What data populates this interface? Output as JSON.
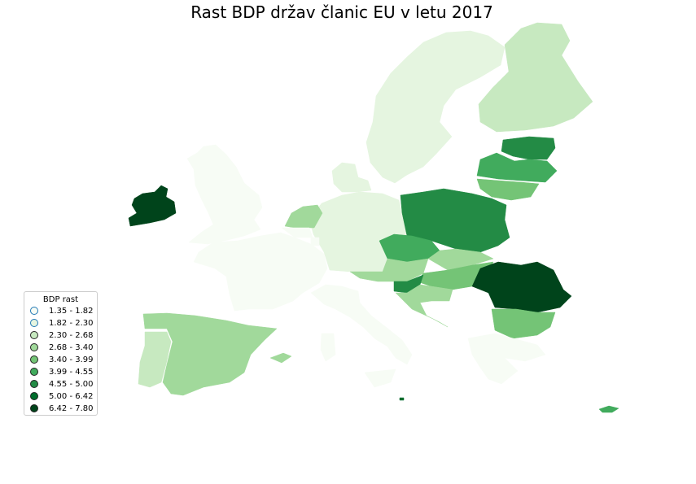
{
  "title": "Rast BDP držav članic EU v letu 2017",
  "legend": {
    "title": "BDP rast",
    "classes": [
      {
        "label": "1.35 - 1.82",
        "color": "#f7fcf5",
        "border": "#1f77b4"
      },
      {
        "label": "1.82 - 2.30",
        "color": "#e5f5e0",
        "border": "#1f77b4"
      },
      {
        "label": "2.30 - 2.68",
        "color": "#c7e9c0",
        "border": "#1f77b4"
      },
      {
        "label": "2.68 - 3.40",
        "color": "#a1d99b",
        "border": "#1f77b4"
      },
      {
        "label": "3.40 - 3.99",
        "color": "#74c476",
        "border": "#1f77b4"
      },
      {
        "label": "3.99 - 4.55",
        "color": "#41ab5d",
        "border": "#1f77b4"
      },
      {
        "label": "4.55 - 5.00",
        "color": "#238b45",
        "border": "#1f77b4"
      },
      {
        "label": "5.00 - 6.42",
        "color": "#006d2c",
        "border": "#1f77b4"
      },
      {
        "label": "6.42 - 7.80",
        "color": "#00441b",
        "border": "#1f77b4"
      }
    ]
  },
  "regions": [
    {
      "name": "united-kingdom",
      "cls": 0
    },
    {
      "name": "ireland",
      "cls": 8
    },
    {
      "name": "france",
      "cls": 0
    },
    {
      "name": "spain",
      "cls": 3
    },
    {
      "name": "portugal",
      "cls": 2
    },
    {
      "name": "italy",
      "cls": 0
    },
    {
      "name": "sardinia",
      "cls": 0
    },
    {
      "name": "sicily",
      "cls": 0
    },
    {
      "name": "germany",
      "cls": 1
    },
    {
      "name": "netherlands",
      "cls": 3
    },
    {
      "name": "belgium",
      "cls": 0
    },
    {
      "name": "luxembourg",
      "cls": 0
    },
    {
      "name": "denmark",
      "cls": 1
    },
    {
      "name": "sweden",
      "cls": 1
    },
    {
      "name": "finland",
      "cls": 2
    },
    {
      "name": "estonia",
      "cls": 6
    },
    {
      "name": "latvia",
      "cls": 5
    },
    {
      "name": "lithuania",
      "cls": 4
    },
    {
      "name": "poland",
      "cls": 6
    },
    {
      "name": "czechia",
      "cls": 5
    },
    {
      "name": "slovakia",
      "cls": 3
    },
    {
      "name": "austria",
      "cls": 3
    },
    {
      "name": "hungary",
      "cls": 4
    },
    {
      "name": "slovenia",
      "cls": 6
    },
    {
      "name": "croatia",
      "cls": 3
    },
    {
      "name": "romania",
      "cls": 8
    },
    {
      "name": "bulgaria",
      "cls": 4
    },
    {
      "name": "greece",
      "cls": 0
    },
    {
      "name": "cyprus",
      "cls": 5
    },
    {
      "name": "malta",
      "cls": 7
    },
    {
      "name": "balearic-islands",
      "cls": 3
    }
  ]
}
